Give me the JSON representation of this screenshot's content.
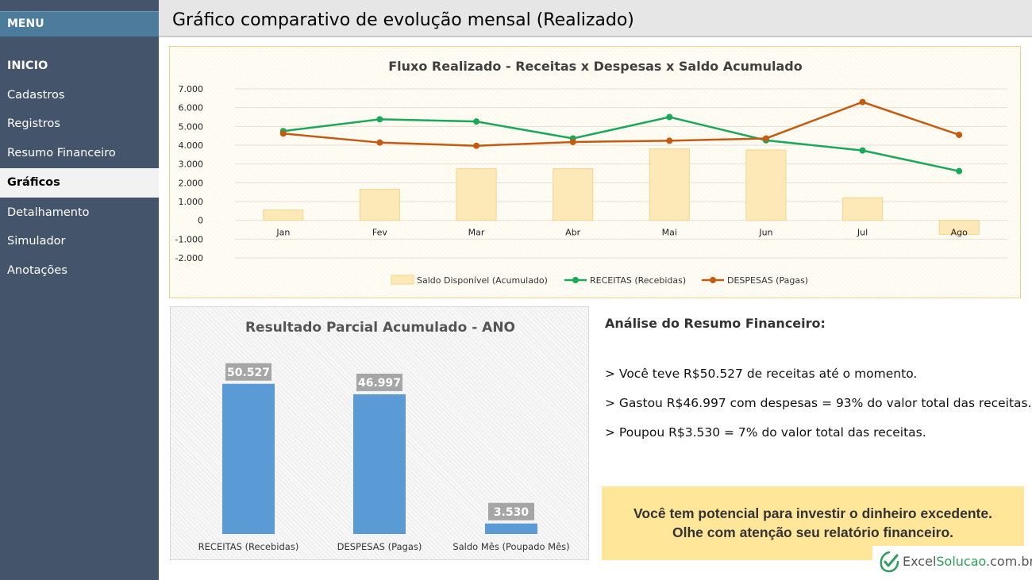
{
  "sidebar": {
    "menu_label": "MENU",
    "items": [
      {
        "label": "INICIO"
      },
      {
        "label": "Cadastros"
      },
      {
        "label": "Registros"
      },
      {
        "label": "Resumo Financeiro"
      },
      {
        "label": "Gráficos"
      },
      {
        "label": "Detalhamento"
      },
      {
        "label": "Simulador"
      },
      {
        "label": "Anotações"
      }
    ],
    "active_item": "Gráficos"
  },
  "header": {
    "title": "Gráfico comparativo de evolução mensal (Realizado)"
  },
  "chart_data": [
    {
      "type": "bar+line",
      "title": "Fluxo Realizado - Receitas x Despesas x Saldo Acumulado",
      "categories": [
        "Jan",
        "Fev",
        "Mar",
        "Abr",
        "Mai",
        "Jun",
        "Jul",
        "Ago"
      ],
      "ylim": [
        -2000,
        7000
      ],
      "yticks": [
        "7.000",
        "6.000",
        "5.000",
        "4.000",
        "3.000",
        "2.000",
        "1.000",
        "0",
        "-1.000",
        "-2.000"
      ],
      "grid": true,
      "legend_position": "bottom",
      "series": [
        {
          "name": "Saldo Disponível (Acumulado)",
          "type": "bar",
          "color": "#fde9b8",
          "values": [
            550,
            1650,
            2750,
            2750,
            3800,
            3750,
            1200,
            -750
          ]
        },
        {
          "name": "RECEITAS (Recebidas)",
          "type": "line",
          "color": "#1aa85a",
          "values": [
            4750,
            5380,
            5260,
            4360,
            5500,
            4260,
            3720,
            2620
          ]
        },
        {
          "name": "DESPESAS (Pagas)",
          "type": "line",
          "color": "#c55a11",
          "values": [
            4620,
            4140,
            3970,
            4170,
            4240,
            4360,
            6300,
            4550
          ]
        }
      ]
    },
    {
      "type": "bar",
      "title": "Resultado Parcial Acumulado - ANO",
      "categories": [
        "RECEITAS (Recebidas)",
        "DESPESAS (Pagas)",
        "Saldo Mês (Poupado Mês)"
      ],
      "values": [
        50527,
        46997,
        3530
      ],
      "value_labels": [
        "50.527",
        "46.997",
        "3.530"
      ],
      "ylim": [
        0,
        55000
      ],
      "color": "#5b9bd5",
      "grid": false
    }
  ],
  "analysis": {
    "title": "Análise do Resumo Financeiro:",
    "lines": [
      "> Você teve R$50.527 de receitas até o momento.",
      "> Gastou R$46.997 com despesas = 93% do valor total das receitas.",
      "> Poupou R$3.530  = 7% do valor total das receitas."
    ]
  },
  "tip": {
    "line1": "Você tem potencial para investir o dinheiro excedente.",
    "line2": "Olhe com atenção seu relatório financeiro."
  },
  "brand": {
    "prefix": "Excel",
    "highlight": "Solucao",
    "suffix": ".com.br",
    "icon": "check-leaf-icon",
    "accent_color": "#2e9e5b"
  }
}
